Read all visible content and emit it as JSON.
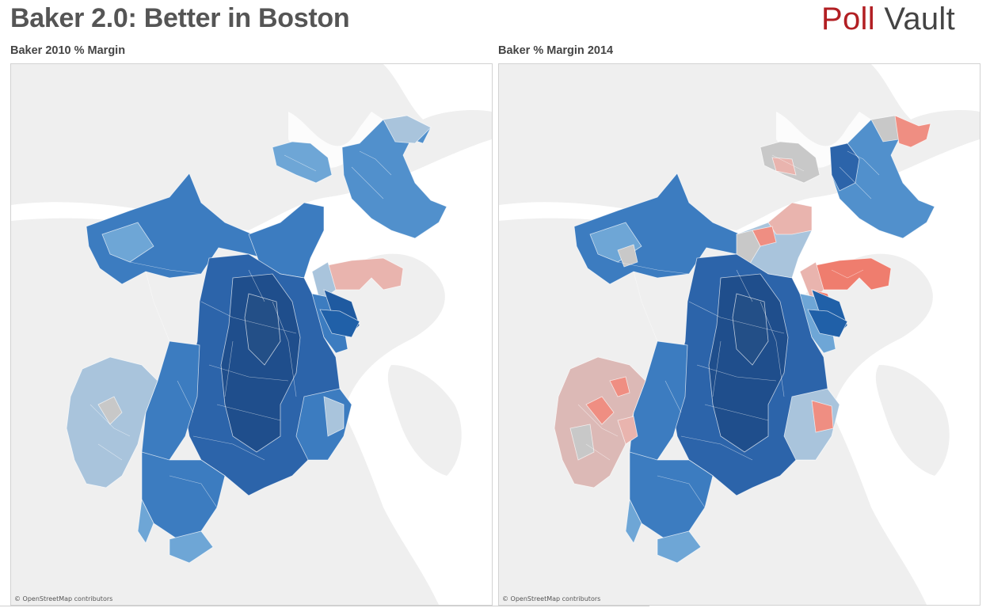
{
  "header": {
    "title": "Baker 2.0: Better in Boston",
    "logo_word1": "Poll",
    "logo_word2": "Vault",
    "logo_color1": "#b21f23",
    "logo_color2": "#444444"
  },
  "maps": [
    {
      "title": "Baker 2010 % Margin",
      "attribution": "© OpenStreetMap contributors"
    },
    {
      "title": "Baker % Margin 2014",
      "attribution": "© OpenStreetMap contributors"
    }
  ],
  "colors": {
    "background_land": "#efefef",
    "water": "#ffffff",
    "dark_blue": "#1f4e8c",
    "mid_blue": "#3c7cc0",
    "light_blue": "#6ea6d6",
    "pale_blue": "#a9c4dc",
    "gray": "#c8c8c8",
    "pale_red": "#e9b4ae",
    "red": "#ef7d6e"
  }
}
